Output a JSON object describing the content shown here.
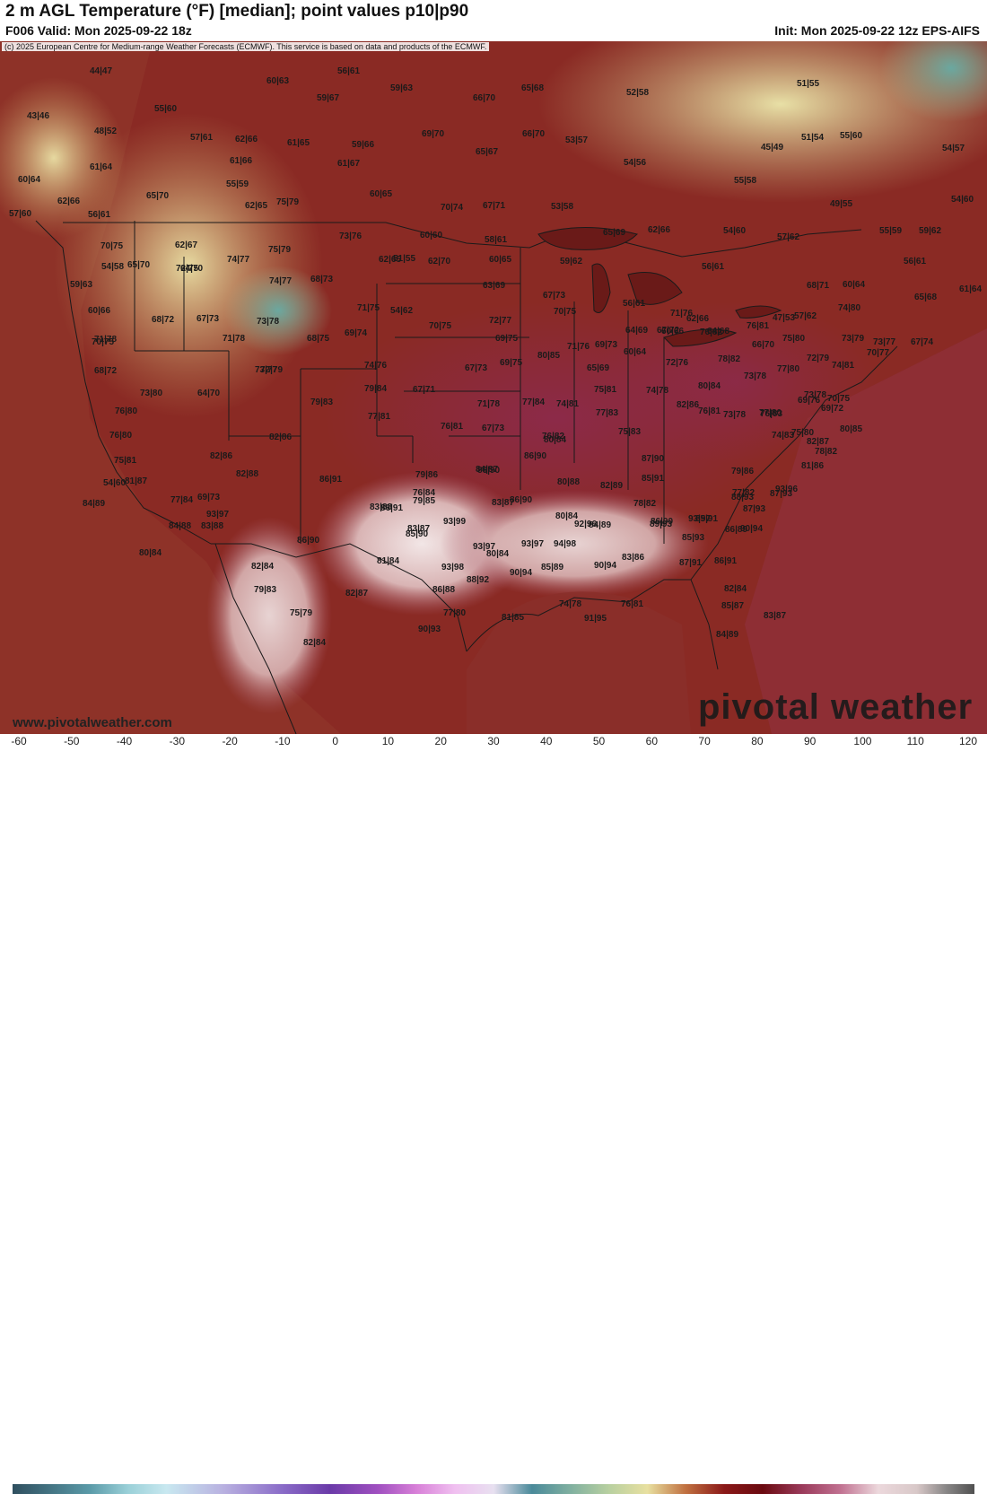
{
  "header": {
    "title": "2 m AGL Temperature (°F) [median]; point values p10|p90",
    "valid": "F006 Valid: Mon 2025-09-22 18z",
    "init": "Init: Mon 2025-09-22 12z EPS-AIFS"
  },
  "copyright": "(c) 2025 European Centre for Medium-range Weather Forecasts (ECMWF). This service is based on data and products of the ECMWF.",
  "footer": {
    "site": "www.pivotalweather.com",
    "brand": "pivotal weather"
  },
  "colorbar": {
    "ticks": [
      "-60",
      "-50",
      "-40",
      "-30",
      "-20",
      "-10",
      "0",
      "10",
      "20",
      "30",
      "40",
      "50",
      "60",
      "70",
      "80",
      "90",
      "100",
      "110",
      "120"
    ]
  },
  "point_values": [
    "44|47",
    "56|61",
    "60|63",
    "59|63",
    "65|68",
    "52|58",
    "51|55",
    "43|46",
    "55|60",
    "59|67",
    "66|70",
    "48|52",
    "57|61",
    "62|66",
    "61|65",
    "59|66",
    "69|70",
    "65|67",
    "66|70",
    "53|57",
    "51|54",
    "55|60",
    "45|49",
    "54|57",
    "61|64",
    "61|66",
    "61|67",
    "54|56",
    "60|64",
    "55|59",
    "65|70",
    "60|65",
    "55|58",
    "62|66",
    "62|65",
    "75|79",
    "70|74",
    "67|71",
    "53|58",
    "49|55",
    "54|60",
    "57|60",
    "56|61",
    "62|67",
    "75|79",
    "73|76",
    "60|60",
    "58|61",
    "65|69",
    "62|66",
    "54|60",
    "57|62",
    "55|59",
    "59|62",
    "70|75",
    "72|75",
    "74|77",
    "62|65",
    "62|70",
    "60|65",
    "59|62",
    "56|61",
    "65|70",
    "64|70",
    "51|55",
    "56|61",
    "74|77",
    "68|73",
    "63|69",
    "67|73",
    "68|71",
    "60|64",
    "65|68",
    "59|63",
    "54|58",
    "61|64",
    "60|66",
    "68|72",
    "67|73",
    "71|75",
    "54|62",
    "56|61",
    "71|76",
    "73|78",
    "70|75",
    "72|77",
    "70|75",
    "62|66",
    "64|68",
    "60|66",
    "47|53",
    "57|62",
    "74|80",
    "71|78",
    "71|78",
    "68|75",
    "69|74",
    "69|75",
    "71|76",
    "69|73",
    "64|69",
    "67|72",
    "76|82",
    "76|81",
    "75|80",
    "73|79",
    "73|77",
    "67|74",
    "70|75",
    "72|79",
    "74|76",
    "67|73",
    "69|75",
    "80|85",
    "65|69",
    "60|64",
    "72|76",
    "78|82",
    "66|70",
    "72|79",
    "70|77",
    "68|72",
    "73|80",
    "64|70",
    "79|84",
    "67|71",
    "74|78",
    "80|84",
    "77|80",
    "74|81",
    "73|78",
    "69|76",
    "70|75",
    "73|77",
    "76|80",
    "79|83",
    "77|81",
    "71|78",
    "77|84",
    "74|81",
    "77|83",
    "82|86",
    "76|81",
    "73|78",
    "69|72",
    "77|80",
    "76|80",
    "82|86",
    "76|81",
    "67|73",
    "75|81",
    "73|78",
    "76|83",
    "80|85",
    "75|80",
    "82|87",
    "78|82",
    "75|81",
    "54|60",
    "86|91",
    "82|86",
    "76|82",
    "75|83",
    "74|83",
    "81|87",
    "79|86",
    "81|86",
    "80|84",
    "84|89",
    "82|88",
    "86|90",
    "77|84",
    "69|73",
    "79|86",
    "87|93",
    "85|91",
    "80|88",
    "82|89",
    "86|90",
    "87|90",
    "84|87",
    "76|84",
    "79|85",
    "77|82",
    "93|96",
    "93|97",
    "86|91",
    "83|87",
    "86|90",
    "80|84",
    "92|96",
    "78|82",
    "86|90",
    "85|91",
    "88|93",
    "87|93",
    "83|88",
    "84|88",
    "86|90",
    "83|87",
    "85|90",
    "83|88",
    "93|99",
    "84|89",
    "89|93",
    "93|97",
    "85|93",
    "86|89",
    "90|94",
    "80|84",
    "82|84",
    "81|84",
    "93|98",
    "80|84",
    "93|97",
    "85|89",
    "94|98",
    "90|94",
    "83|86",
    "87|91",
    "86|91",
    "93|97",
    "79|83",
    "82|87",
    "88|92",
    "90|94",
    "86|88",
    "74|78",
    "91|95",
    "76|81",
    "82|84",
    "85|87",
    "83|87",
    "75|79",
    "90|93",
    "77|80",
    "81|85",
    "84|89",
    "82|84"
  ]
}
